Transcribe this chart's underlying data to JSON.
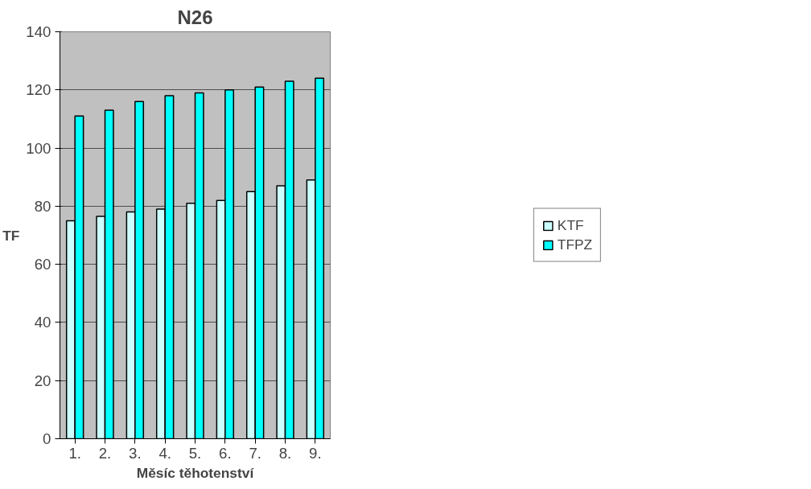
{
  "chart_data": {
    "type": "bar",
    "title": "N26",
    "xlabel": "Měsíc těhotenství",
    "ylabel": "TF",
    "categories": [
      "1.",
      "2.",
      "3.",
      "4.",
      "5.",
      "6.",
      "7.",
      "8.",
      "9."
    ],
    "series": [
      {
        "name": "KTF",
        "color": "#ccffff",
        "values": [
          75,
          76.5,
          78,
          79,
          81,
          82,
          85,
          87,
          89
        ]
      },
      {
        "name": "TFPZ",
        "color": "#00ffff",
        "values": [
          111,
          113,
          116,
          118,
          119,
          120,
          121,
          123,
          124
        ]
      }
    ],
    "ylim": [
      0,
      140
    ],
    "yticks": [
      0,
      20,
      40,
      60,
      80,
      100,
      120,
      140
    ],
    "grid": "y",
    "legend": "right"
  }
}
